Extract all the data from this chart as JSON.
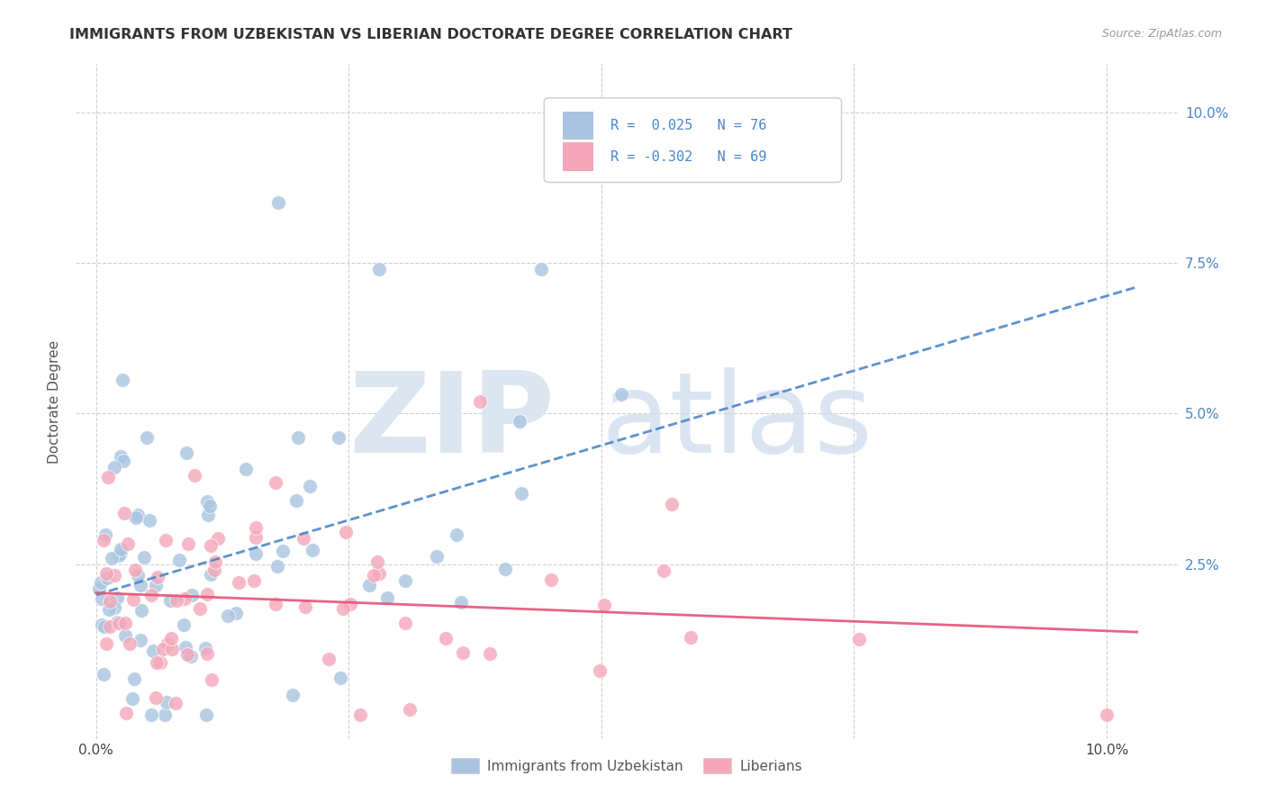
{
  "title": "IMMIGRANTS FROM UZBEKISTAN VS LIBERIAN DOCTORATE DEGREE CORRELATION CHART",
  "source": "Source: ZipAtlas.com",
  "ylabel": "Doctorate Degree",
  "uzbek_color": "#a8c4e0",
  "liberian_color": "#f4a7b9",
  "uzbek_line_color": "#4a86c8",
  "liberian_line_color": "#e8517a",
  "uzbek_R": 0.025,
  "uzbek_N": 76,
  "liberian_R": -0.302,
  "liberian_N": 69,
  "legend_label_1": "Immigrants from Uzbekistan",
  "legend_label_2": "Liberians",
  "background_color": "#ffffff",
  "grid_color": "#cccccc",
  "xlim": [
    -0.002,
    0.107
  ],
  "ylim": [
    -0.004,
    0.108
  ],
  "ytick_color": "#4a86c8",
  "title_color": "#333333",
  "source_color": "#999999"
}
